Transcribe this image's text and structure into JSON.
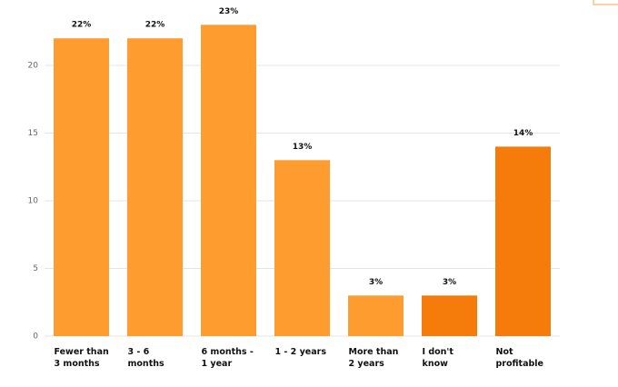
{
  "chart_data": {
    "type": "bar",
    "categories": [
      "Fewer than 3 months",
      "3 - 6 months",
      "6 months - 1 year",
      "1 - 2 years",
      "More than 2 years",
      "I don't know",
      "Not profitable"
    ],
    "values": [
      22,
      22,
      23,
      13,
      3,
      3,
      14
    ],
    "value_labels": [
      "22%",
      "22%",
      "23%",
      "13%",
      "3%",
      "3%",
      "14%"
    ],
    "colors": [
      "#ff9c30",
      "#ff9c30",
      "#ff9c30",
      "#ff9c30",
      "#ff9c30",
      "#f57b0a",
      "#f57b0a"
    ],
    "ylim": [
      0,
      24
    ],
    "yticks": [
      0,
      5,
      10,
      15,
      20
    ],
    "grid": true
  }
}
